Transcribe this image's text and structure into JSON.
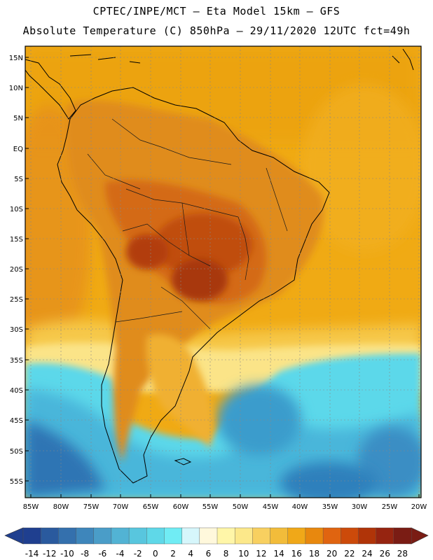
{
  "header": {
    "title_line1": "CPTEC/INPE/MCT –  Eta Model 15km – GFS",
    "title_line2": "Absolute Temperature (C) 850hPa – 29/11/2020 12UTC fct=49h"
  },
  "map": {
    "lat_labels": [
      "15N",
      "10N",
      "5N",
      "EQ",
      "5S",
      "10S",
      "15S",
      "20S",
      "25S",
      "30S",
      "35S",
      "40S",
      "45S",
      "50S",
      "55S"
    ],
    "lon_labels": [
      "85W",
      "80W",
      "75W",
      "70W",
      "65W",
      "60W",
      "55W",
      "50W",
      "45W",
      "40W",
      "35W",
      "30W",
      "25W",
      "20W"
    ],
    "colors": {
      "ocean_tropical": "#f2b010",
      "land_warm": "#e08a1c",
      "land_hot": "#cc5a10",
      "core_hot": "#a83808",
      "mid_yellow": "#f8d060",
      "cold_cyan": "#5ad8ec",
      "cold_blue": "#3aa0cc",
      "deep_blue": "#2a6aa8",
      "coast": "#000000",
      "border": "#1a1a1a"
    }
  },
  "colorbar": {
    "labels": [
      "-14",
      "-12",
      "-10",
      "-8",
      "-6",
      "-4",
      "-2",
      "0",
      "2",
      "4",
      "6",
      "8",
      "10",
      "12",
      "14",
      "16",
      "18",
      "20",
      "22",
      "24",
      "26",
      "28"
    ],
    "colors": [
      "#1f3f8f",
      "#2a5a9e",
      "#3470ad",
      "#3e86bb",
      "#4a9dc8",
      "#52b3d4",
      "#58c6de",
      "#5fd8e8",
      "#70ecf4",
      "#d6f6fb",
      "#fff8dc",
      "#fff6a8",
      "#fce88a",
      "#f8d060",
      "#f2bc3a",
      "#f0a818",
      "#e8880e",
      "#e06410",
      "#cc4a0a",
      "#b03408",
      "#962410",
      "#7a1c14"
    ]
  }
}
